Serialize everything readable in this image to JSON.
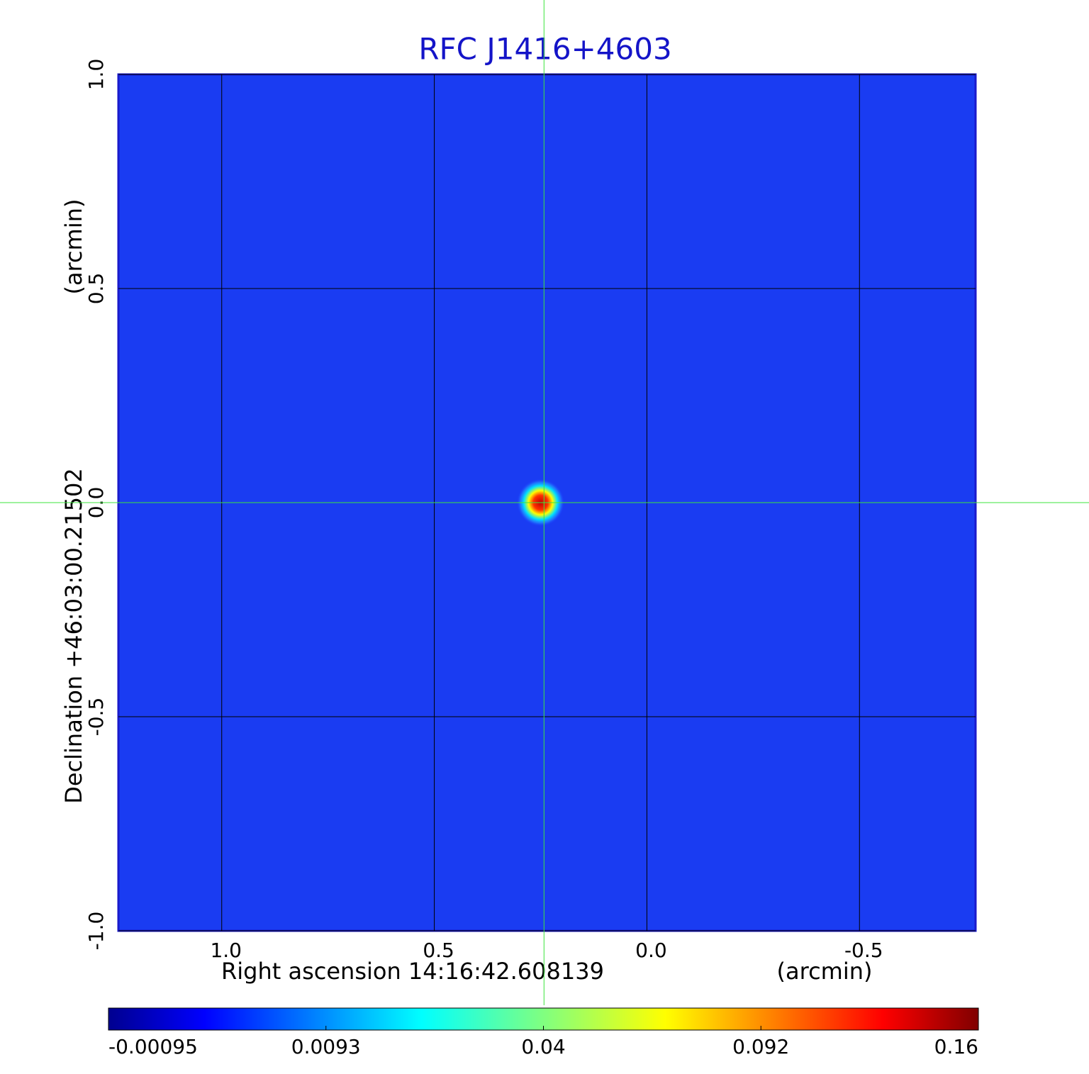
{
  "chart_data": {
    "type": "image",
    "title": "RFC J1416+4603",
    "x_label": "Right ascension  14:16:42.608139",
    "x_unit": "(arcmin)",
    "y_label": "Declination  +46:03:00.21502",
    "y_unit": "(arcmin)",
    "xlim": [
      1.243,
      -0.773
    ],
    "ylim": [
      -1.0,
      1.0
    ],
    "xticks": [
      {
        "value": 1.0,
        "label": "1.0"
      },
      {
        "value": 0.5,
        "label": "0.5"
      },
      {
        "value": 0.0,
        "label": "0.0"
      },
      {
        "value": -0.5,
        "label": "-0.5"
      }
    ],
    "yticks": [
      {
        "value": -1.0,
        "label": "-1.0"
      },
      {
        "value": -0.5,
        "label": "-0.5"
      },
      {
        "value": 0.0,
        "label": "0.0"
      },
      {
        "value": 0.5,
        "label": "0.5"
      },
      {
        "value": 1.0,
        "label": "1.0"
      }
    ],
    "grid": true,
    "source": {
      "x": 0.25,
      "y": 0.0,
      "value": 0.16
    },
    "crosshair": {
      "x": 0.242,
      "y": 0.0
    },
    "colormap": "jet",
    "colorbar_ticks": [
      -0.00095,
      0.0093,
      0.04,
      0.092,
      0.16
    ]
  }
}
